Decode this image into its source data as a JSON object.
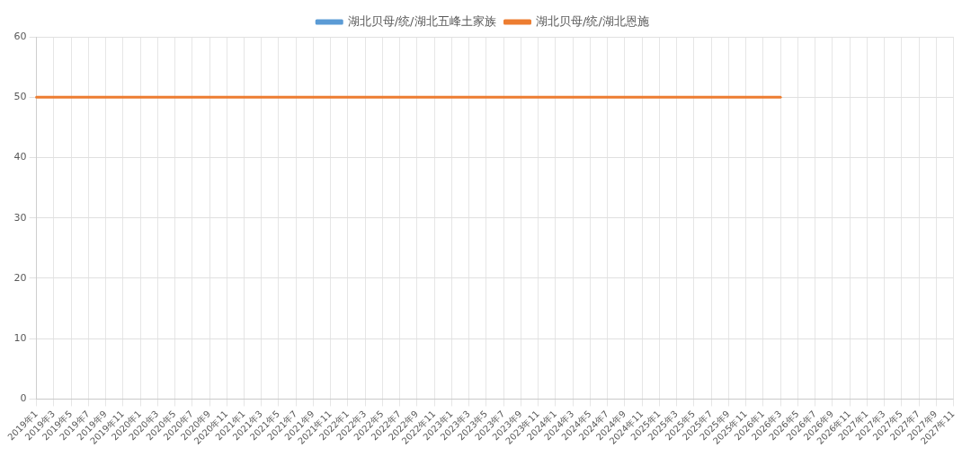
{
  "chart_data": {
    "type": "line",
    "categories": [
      "2019年1",
      "2019年3",
      "2019年5",
      "2019年7",
      "2019年9",
      "2019年11",
      "2020年1",
      "2020年3",
      "2020年5",
      "2020年7",
      "2020年9",
      "2020年11",
      "2021年1",
      "2021年3",
      "2021年5",
      "2021年7",
      "2021年9",
      "2021年11",
      "2022年1",
      "2022年3",
      "2022年5",
      "2022年7",
      "2022年9",
      "2022年11",
      "2023年1",
      "2023年3",
      "2023年5",
      "2023年7",
      "2023年9",
      "2023年11",
      "2024年1",
      "2024年3",
      "2024年5",
      "2024年7",
      "2024年9",
      "2024年11",
      "2025年1",
      "2025年3",
      "2025年5",
      "2025年7",
      "2025年9",
      "2025年11",
      "2026年1",
      "2026年3",
      "2026年5",
      "2026年7",
      "2026年9",
      "2026年11",
      "2027年1",
      "2027年3",
      "2027年5",
      "2027年7",
      "2027年9",
      "2027年11"
    ],
    "series": [
      {
        "name": "湖北贝母/统/湖北五峰土家族",
        "color": "#5b9bd5",
        "values": [
          null,
          null,
          null,
          null,
          null,
          null,
          null,
          null,
          null,
          null,
          null,
          null,
          null,
          null,
          null,
          null,
          null,
          null,
          null,
          null,
          null,
          null,
          null,
          null,
          null,
          null,
          null,
          null,
          null,
          null,
          null,
          null,
          null,
          null,
          null,
          null,
          null,
          null,
          null,
          null,
          null,
          null,
          null,
          null,
          null,
          null,
          null,
          null,
          null,
          null,
          null,
          null,
          null,
          null
        ]
      },
      {
        "name": "湖北贝母/统/湖北恩施",
        "color": "#ed7d31",
        "values": [
          50,
          50,
          50,
          50,
          50,
          50,
          50,
          50,
          50,
          50,
          50,
          50,
          50,
          50,
          50,
          50,
          50,
          50,
          50,
          50,
          50,
          50,
          50,
          50,
          50,
          50,
          50,
          50,
          50,
          50,
          50,
          50,
          50,
          50,
          50,
          50,
          50,
          50,
          50,
          50,
          50,
          50,
          50,
          50,
          null,
          null,
          null,
          null,
          null,
          null,
          null,
          null,
          null,
          null
        ]
      }
    ],
    "ylim": [
      0,
      60
    ],
    "yticks": [
      0,
      10,
      20,
      30,
      40,
      50,
      60
    ],
    "grid": true,
    "legend": "top",
    "marker": "none",
    "line_style": "solid"
  }
}
